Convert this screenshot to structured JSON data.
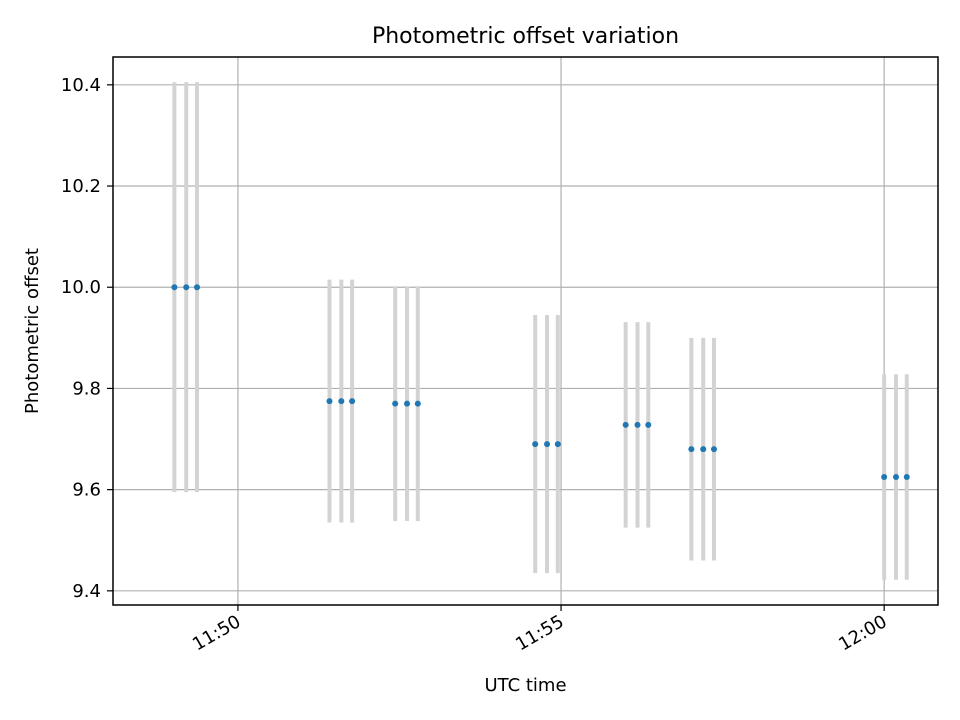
{
  "chart_data": {
    "type": "scatter",
    "title": "Photometric offset variation",
    "xlabel": "UTC time",
    "ylabel": "Photometric offset",
    "xlim": [
      "11:48:04",
      "12:00:50"
    ],
    "ylim": [
      9.372,
      10.455
    ],
    "x_ticks": [
      "11:50",
      "11:55",
      "12:00"
    ],
    "y_ticks": [
      9.4,
      9.6,
      9.8,
      10.0,
      10.2,
      10.4
    ],
    "grid": true,
    "colors": {
      "marker": "#1f77b4",
      "errorbar": "#d3d3d3"
    },
    "groups": [
      {
        "x": [
          "11:49:01",
          "11:49:12",
          "11:49:22"
        ],
        "y": 10.0,
        "err": 0.405
      },
      {
        "x": [
          "11:51:25",
          "11:51:36",
          "11:51:46"
        ],
        "y": 9.775,
        "err": 0.24
      },
      {
        "x": [
          "11:52:26",
          "11:52:37",
          "11:52:47"
        ],
        "y": 9.77,
        "err": 0.232
      },
      {
        "x": [
          "11:54:36",
          "11:54:47",
          "11:54:57"
        ],
        "y": 9.69,
        "err": 0.255
      },
      {
        "x": [
          "11:56:00",
          "11:56:11",
          "11:56:21"
        ],
        "y": 9.728,
        "err": 0.203
      },
      {
        "x": [
          "11:57:01",
          "11:57:12",
          "11:57:22"
        ],
        "y": 9.68,
        "err": 0.22
      },
      {
        "x": [
          "12:00:00",
          "12:00:11",
          "12:00:21"
        ],
        "y": 9.625,
        "err": 0.203
      }
    ]
  }
}
